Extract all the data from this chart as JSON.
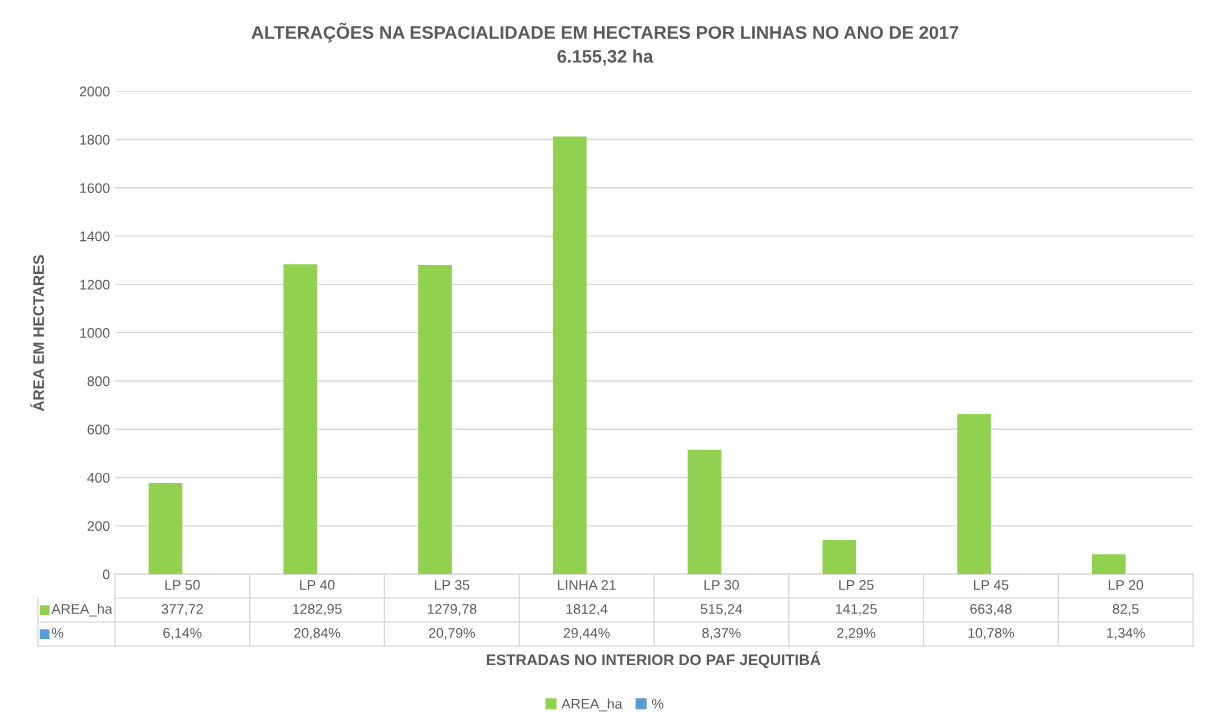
{
  "chart_data": {
    "type": "bar",
    "title": "ALTERAÇÕES NA ESPACIALIDADE EM HECTARES POR LINHAS NO ANO DE 2017",
    "subtitle": "6.155,32 ha",
    "xlabel": "ESTRADAS NO INTERIOR DO PAF JEQUITIBÁ",
    "ylabel": "ÁREA EM HECTARES",
    "categories": [
      "LP 50",
      "LP 40",
      "LP 35",
      "LINHA 21",
      "LP 30",
      "LP 25",
      "LP 45",
      "LP 20"
    ],
    "series": [
      {
        "name": "AREA_ha",
        "color": "#92d050",
        "values": [
          377.72,
          1282.95,
          1279.78,
          1812.4,
          515.24,
          141.25,
          663.48,
          82.5
        ],
        "value_labels": [
          "377,72",
          "1282,95",
          "1279,78",
          "1812,4",
          "515,24",
          "141,25",
          "663,48",
          "82,5"
        ]
      },
      {
        "name": "%",
        "color": "#5b9bd5",
        "values": [
          0.0614,
          0.2084,
          0.2079,
          0.2944,
          0.0837,
          0.0229,
          0.1078,
          0.0134
        ],
        "value_labels": [
          "6,14%",
          "20,84%",
          "20,79%",
          "29,44%",
          "8,37%",
          "2,29%",
          "10,78%",
          "1,34%"
        ]
      }
    ],
    "ylim": [
      0,
      2000
    ],
    "yticks": [
      0,
      200,
      400,
      600,
      800,
      1000,
      1200,
      1400,
      1600,
      1800,
      2000
    ],
    "grid": "y",
    "legend": "bottom"
  }
}
